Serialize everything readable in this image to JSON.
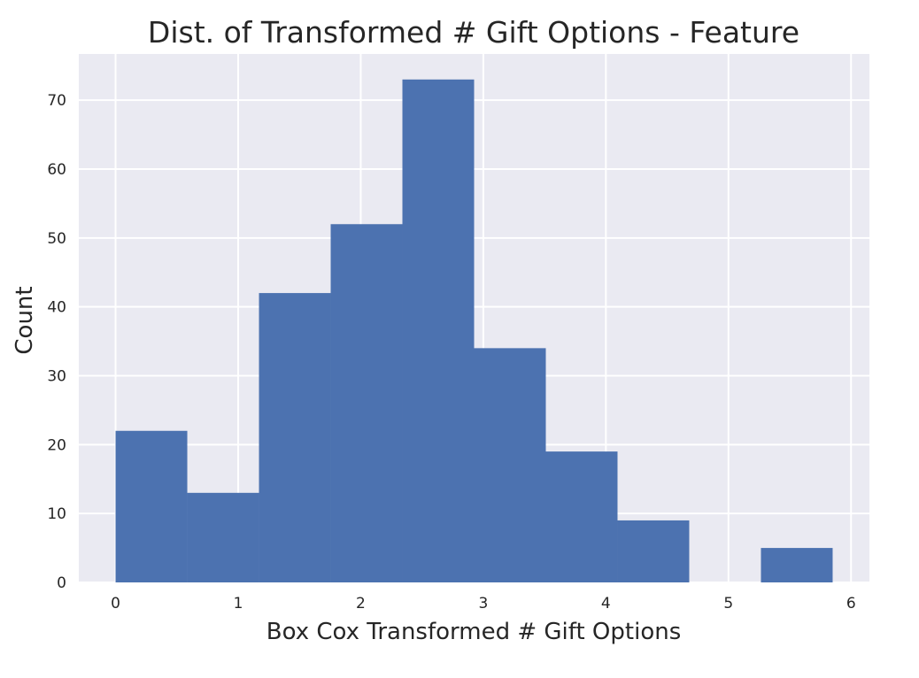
{
  "chart_data": {
    "type": "bar",
    "title": "Dist. of Transformed # Gift Options - Feature",
    "xlabel": "Box Cox Transformed # Gift Options",
    "ylabel": "Count",
    "xlim": [
      -0.3,
      6.15
    ],
    "ylim": [
      0,
      76.7
    ],
    "xticks": [
      "0",
      "1",
      "2",
      "3",
      "4",
      "5",
      "6"
    ],
    "yticks": [
      "0",
      "10",
      "20",
      "30",
      "40",
      "50",
      "60",
      "70"
    ],
    "bin_edges": [
      0.0,
      0.585,
      1.17,
      1.755,
      2.34,
      2.925,
      3.51,
      4.095,
      4.68,
      5.265,
      5.85
    ],
    "values": [
      22,
      13,
      42,
      52,
      73,
      34,
      19,
      9,
      0,
      5
    ],
    "grid": true,
    "bar_color": "#4c72b0",
    "background_color": "#eaeaf2",
    "grid_color": "#ffffff"
  }
}
